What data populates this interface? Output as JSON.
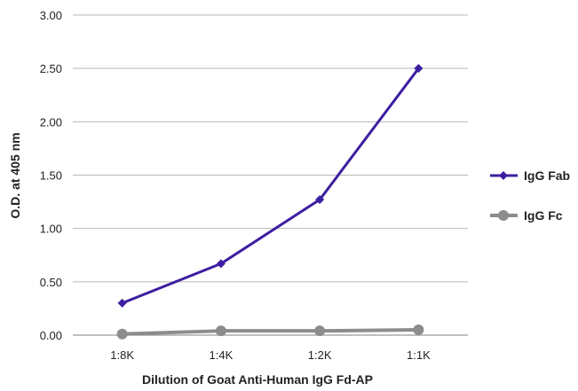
{
  "chart_data": {
    "type": "line",
    "categories": [
      "1:8K",
      "1:4K",
      "1:2K",
      "1:1K"
    ],
    "series": [
      {
        "name": "IgG Fab",
        "values": [
          0.3,
          0.67,
          1.27,
          2.5
        ],
        "color": "#3d1ea0",
        "marker": "diamond"
      },
      {
        "name": "IgG Fc",
        "values": [
          0.01,
          0.04,
          0.04,
          0.05
        ],
        "color": "#8c8c8c",
        "marker": "circle"
      }
    ],
    "title": "",
    "xlabel": "Dilution of Goat Anti-Human IgG Fd-AP",
    "ylabel": "O.D. at 405 nm",
    "ylim": [
      0,
      3.0
    ],
    "yticks": [
      "0.00",
      "0.50",
      "1.00",
      "1.50",
      "2.00",
      "2.50",
      "3.00"
    ],
    "grid": true,
    "legend_position": "right"
  }
}
